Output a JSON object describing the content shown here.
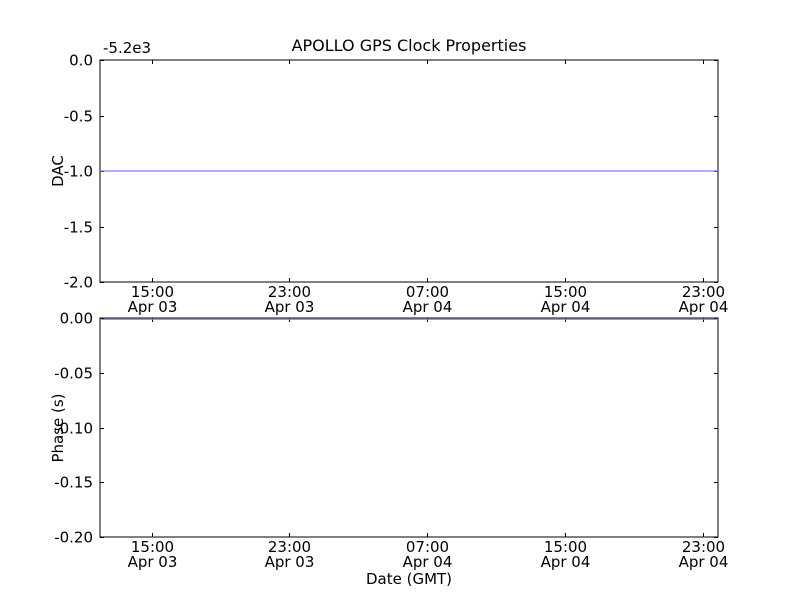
{
  "figure": {
    "background": "#ffffff",
    "spine_color": "#000000"
  },
  "chart_data": [
    {
      "type": "line",
      "title": "APOLLO GPS Clock Properties",
      "ylabel": "DAC",
      "xlabel": "",
      "y_offset_text": "-5.2e3",
      "ylim": [
        -2.0,
        0.0
      ],
      "yticks": [
        0.0,
        -0.5,
        -1.0,
        -1.5,
        -2.0
      ],
      "ytick_labels": [
        "0.0",
        "-0.5",
        "-1.0",
        "-1.5",
        "-2.0"
      ],
      "xlim": [
        12.0,
        47.9
      ],
      "x_unit": "hours since Apr 03 00:00 GMT",
      "xticks": [
        15,
        23,
        31,
        39,
        47
      ],
      "xtick_labels": [
        [
          "15:00",
          "Apr 03"
        ],
        [
          "23:00",
          "Apr 03"
        ],
        [
          "07:00",
          "Apr 04"
        ],
        [
          "15:00",
          "Apr 04"
        ],
        [
          "23:00",
          "Apr 04"
        ]
      ],
      "grid": false,
      "legend": null,
      "series": [
        {
          "name": "DAC",
          "color": "#8080f8",
          "x": [
            12.0,
            47.9
          ],
          "y": [
            -1.0,
            -1.0
          ]
        }
      ]
    },
    {
      "type": "line",
      "title": "",
      "ylabel": "Phase (s)",
      "xlabel": "Date (GMT)",
      "y_offset_text": "",
      "ylim": [
        -0.2,
        0.0
      ],
      "yticks": [
        0.0,
        -0.05,
        -0.1,
        -0.15,
        -0.2
      ],
      "ytick_labels": [
        "0.00",
        "-0.05",
        "-0.10",
        "-0.15",
        "-0.20"
      ],
      "xlim": [
        12.0,
        47.9
      ],
      "x_unit": "hours since Apr 03 00:00 GMT",
      "xticks": [
        15,
        23,
        31,
        39,
        47
      ],
      "xtick_labels": [
        [
          "15:00",
          "Apr 03"
        ],
        [
          "23:00",
          "Apr 03"
        ],
        [
          "07:00",
          "Apr 04"
        ],
        [
          "15:00",
          "Apr 04"
        ],
        [
          "23:00",
          "Apr 04"
        ]
      ],
      "grid": false,
      "legend": null,
      "series": [
        {
          "name": "Phase",
          "color": "#8080f8",
          "x": [
            12.0,
            47.9
          ],
          "y": [
            0.0,
            0.0
          ]
        }
      ]
    }
  ]
}
